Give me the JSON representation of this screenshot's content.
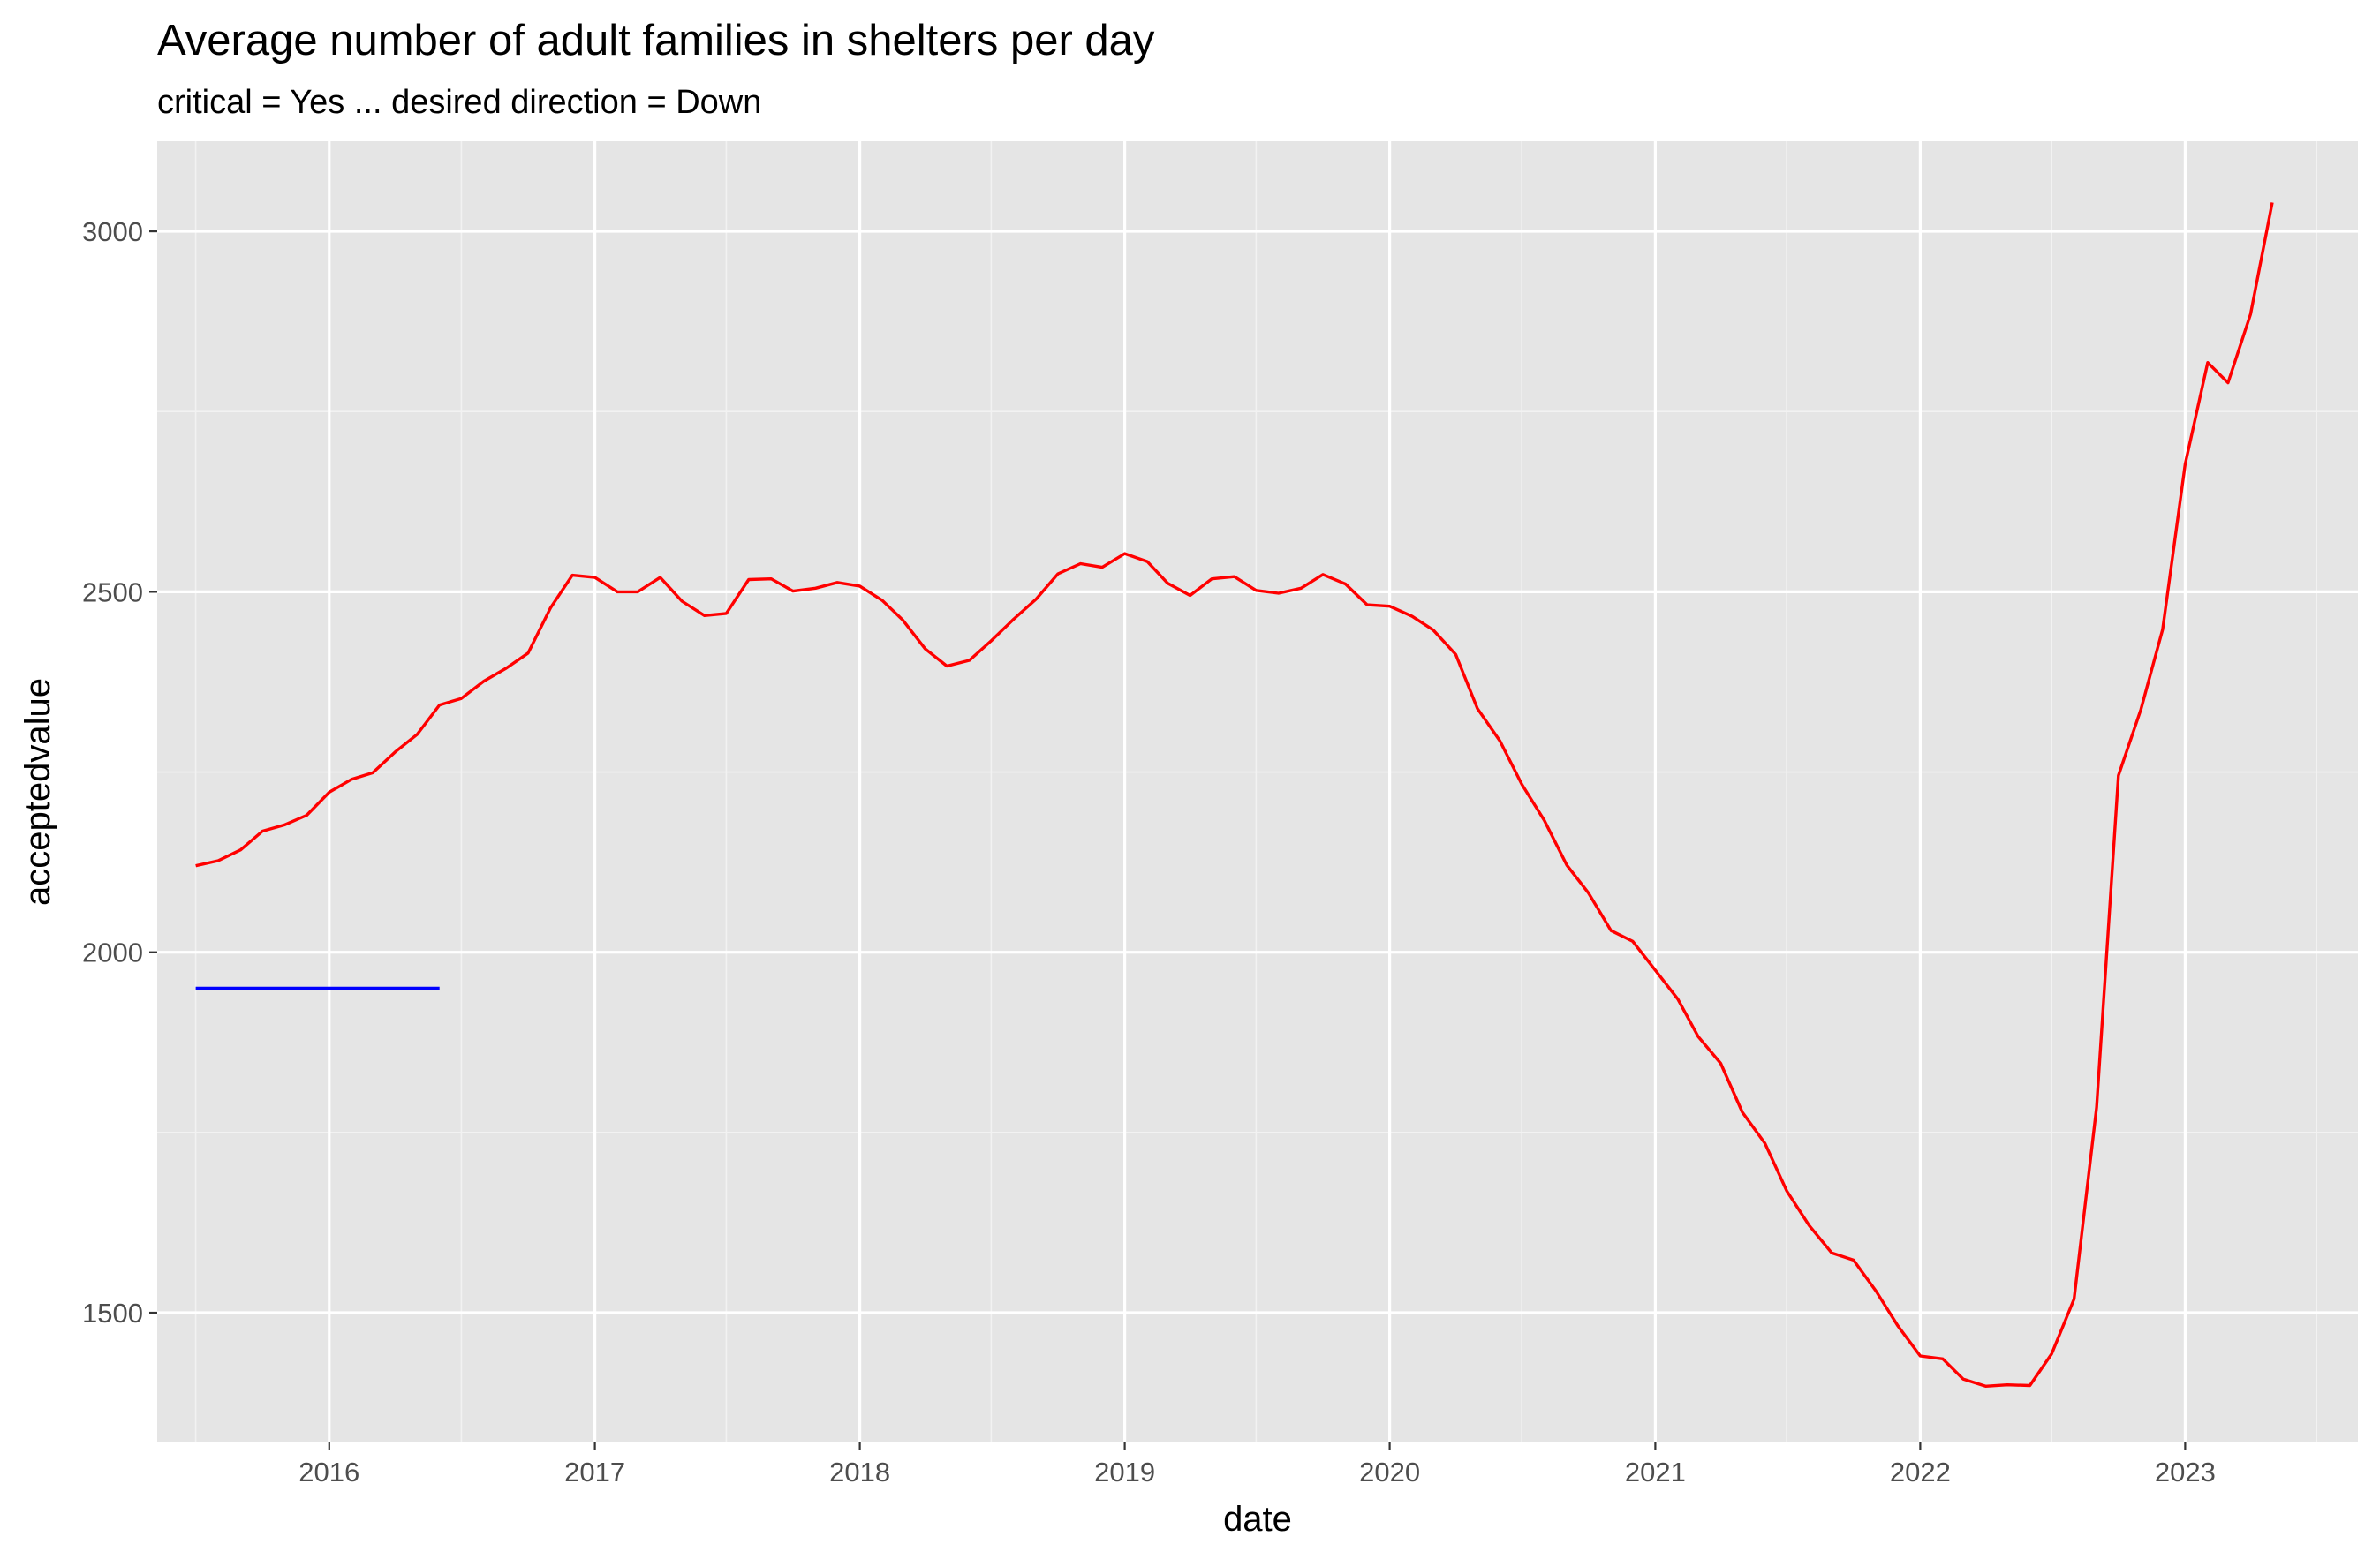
{
  "chart_data": {
    "type": "line",
    "title": "Average number of adult families in shelters per day",
    "subtitle": "critical = Yes ... desired direction = Down",
    "xlabel": "date",
    "ylabel": "acceptedvalue",
    "x_ticks": [
      "2016",
      "2017",
      "2018",
      "2019",
      "2020",
      "2021",
      "2022",
      "2023"
    ],
    "y_ticks": [
      1500,
      2000,
      2500,
      3000
    ],
    "xlim": [
      "2015-05-09",
      "2023-08-27"
    ],
    "ylim": [
      1320,
      3125
    ],
    "grid": true,
    "background": "#e5e5e5",
    "series": [
      {
        "color": "#ff0000",
        "points": [
          [
            "2015-07-01",
            2120
          ],
          [
            "2015-08-01",
            2127
          ],
          [
            "2015-09-01",
            2142
          ],
          [
            "2015-10-01",
            2168
          ],
          [
            "2015-11-01",
            2177
          ],
          [
            "2015-12-01",
            2190
          ],
          [
            "2016-01-01",
            2222
          ],
          [
            "2016-02-01",
            2240
          ],
          [
            "2016-03-01",
            2249
          ],
          [
            "2016-04-01",
            2278
          ],
          [
            "2016-05-01",
            2302
          ],
          [
            "2016-06-01",
            2343
          ],
          [
            "2016-07-01",
            2352
          ],
          [
            "2016-08-01",
            2376
          ],
          [
            "2016-09-01",
            2394
          ],
          [
            "2016-10-01",
            2415
          ],
          [
            "2016-11-01",
            2478
          ],
          [
            "2016-12-01",
            2523
          ],
          [
            "2017-01-01",
            2520
          ],
          [
            "2017-02-01",
            2500
          ],
          [
            "2017-03-01",
            2500
          ],
          [
            "2017-04-01",
            2520
          ],
          [
            "2017-05-01",
            2487
          ],
          [
            "2017-06-01",
            2467
          ],
          [
            "2017-07-01",
            2470
          ],
          [
            "2017-08-01",
            2517
          ],
          [
            "2017-09-01",
            2518
          ],
          [
            "2017-10-01",
            2501
          ],
          [
            "2017-11-01",
            2505
          ],
          [
            "2017-12-01",
            2513
          ],
          [
            "2018-01-01",
            2508
          ],
          [
            "2018-02-01",
            2488
          ],
          [
            "2018-03-01",
            2461
          ],
          [
            "2018-04-01",
            2421
          ],
          [
            "2018-05-01",
            2397
          ],
          [
            "2018-06-01",
            2405
          ],
          [
            "2018-07-01",
            2432
          ],
          [
            "2018-08-01",
            2462
          ],
          [
            "2018-09-01",
            2490
          ],
          [
            "2018-10-01",
            2525
          ],
          [
            "2018-11-01",
            2539
          ],
          [
            "2018-12-01",
            2534
          ],
          [
            "2019-01-01",
            2553
          ],
          [
            "2019-02-01",
            2542
          ],
          [
            "2019-03-01",
            2512
          ],
          [
            "2019-04-01",
            2495
          ],
          [
            "2019-05-01",
            2518
          ],
          [
            "2019-06-01",
            2521
          ],
          [
            "2019-07-01",
            2502
          ],
          [
            "2019-08-01",
            2498
          ],
          [
            "2019-09-01",
            2505
          ],
          [
            "2019-10-01",
            2524
          ],
          [
            "2019-11-01",
            2511
          ],
          [
            "2019-12-01",
            2482
          ],
          [
            "2020-01-01",
            2480
          ],
          [
            "2020-02-01",
            2466
          ],
          [
            "2020-03-01",
            2447
          ],
          [
            "2020-04-01",
            2413
          ],
          [
            "2020-05-01",
            2338
          ],
          [
            "2020-06-01",
            2293
          ],
          [
            "2020-07-01",
            2233
          ],
          [
            "2020-08-01",
            2183
          ],
          [
            "2020-09-01",
            2121
          ],
          [
            "2020-10-01",
            2082
          ],
          [
            "2020-11-01",
            2030
          ],
          [
            "2020-12-01",
            2015
          ],
          [
            "2021-01-01",
            1975
          ],
          [
            "2021-02-01",
            1935
          ],
          [
            "2021-03-01",
            1883
          ],
          [
            "2021-04-01",
            1846
          ],
          [
            "2021-05-01",
            1778
          ],
          [
            "2021-06-01",
            1735
          ],
          [
            "2021-07-01",
            1669
          ],
          [
            "2021-08-01",
            1621
          ],
          [
            "2021-09-01",
            1583
          ],
          [
            "2021-10-01",
            1573
          ],
          [
            "2021-11-01",
            1530
          ],
          [
            "2021-12-01",
            1482
          ],
          [
            "2022-01-01",
            1440
          ],
          [
            "2022-02-01",
            1436
          ],
          [
            "2022-03-01",
            1408
          ],
          [
            "2022-04-01",
            1398
          ],
          [
            "2022-05-01",
            1400
          ],
          [
            "2022-06-01",
            1399
          ],
          [
            "2022-07-01",
            1443
          ],
          [
            "2022-08-01",
            1519
          ],
          [
            "2022-09-01",
            1785
          ],
          [
            "2022-10-01",
            2245
          ],
          [
            "2022-11-01",
            2337
          ],
          [
            "2022-12-01",
            2448
          ],
          [
            "2023-01-01",
            2677
          ],
          [
            "2023-02-01",
            2818
          ],
          [
            "2023-03-01",
            2790
          ],
          [
            "2023-04-01",
            2885
          ],
          [
            "2023-05-01",
            3040
          ]
        ]
      },
      {
        "color": "#0000ff",
        "points": [
          [
            "2015-07-01",
            1950
          ],
          [
            "2016-06-01",
            1950
          ]
        ]
      }
    ]
  }
}
